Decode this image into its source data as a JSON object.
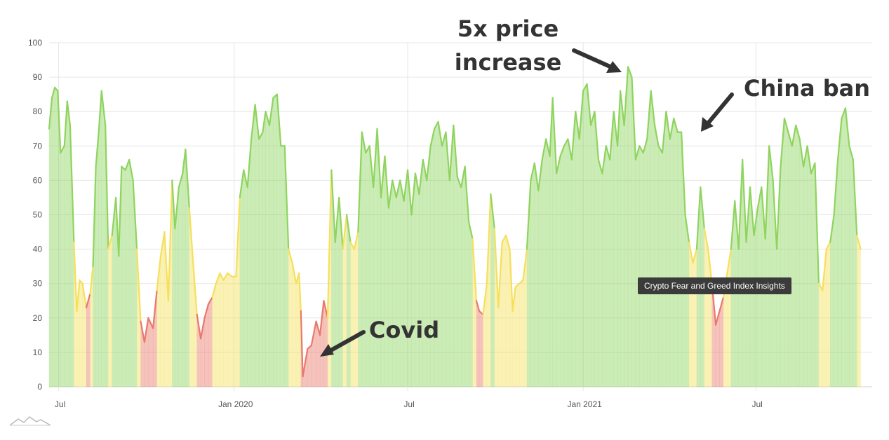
{
  "chart_data": {
    "type": "area",
    "title": "",
    "xlabel": "",
    "ylabel": "",
    "ylim": [
      0,
      100
    ],
    "y_ticks": [
      "0",
      "10",
      "20",
      "30",
      "40",
      "50",
      "60",
      "70",
      "80",
      "90",
      "100"
    ],
    "x_ticks": [
      {
        "label": "Jul",
        "date": "2019-07-01"
      },
      {
        "label": "Jan 2020",
        "date": "2020-01-01"
      },
      {
        "label": "Jul",
        "date": "2020-07-01"
      },
      {
        "label": "Jan 2021",
        "date": "2021-01-01"
      },
      {
        "label": "Jul",
        "date": "2021-07-01"
      }
    ],
    "x_range": [
      "2019-06-21",
      "2021-10-31"
    ],
    "grid": true,
    "color_bands": [
      {
        "from": 0,
        "to": 25,
        "color": "#e8796b"
      },
      {
        "from": 25,
        "to": 45,
        "color": "#f5e05c"
      },
      {
        "from": 45,
        "to": 100,
        "color": "#8fd45f"
      }
    ],
    "series": [
      {
        "points": [
          [
            "2019-06-21",
            75
          ],
          [
            "2019-06-24",
            84
          ],
          [
            "2019-06-27",
            87
          ],
          [
            "2019-06-30",
            86
          ],
          [
            "2019-07-03",
            68
          ],
          [
            "2019-07-07",
            70
          ],
          [
            "2019-07-10",
            83
          ],
          [
            "2019-07-13",
            76
          ],
          [
            "2019-07-17",
            42
          ],
          [
            "2019-07-20",
            22
          ],
          [
            "2019-07-23",
            31
          ],
          [
            "2019-07-26",
            30
          ],
          [
            "2019-07-30",
            23
          ],
          [
            "2019-08-03",
            27
          ],
          [
            "2019-08-06",
            35
          ],
          [
            "2019-08-09",
            64
          ],
          [
            "2019-08-12",
            74
          ],
          [
            "2019-08-15",
            86
          ],
          [
            "2019-08-19",
            76
          ],
          [
            "2019-08-22",
            40
          ],
          [
            "2019-08-26",
            44
          ],
          [
            "2019-08-30",
            55
          ],
          [
            "2019-09-02",
            38
          ],
          [
            "2019-09-05",
            64
          ],
          [
            "2019-09-09",
            63
          ],
          [
            "2019-09-13",
            66
          ],
          [
            "2019-09-17",
            60
          ],
          [
            "2019-09-21",
            40
          ],
          [
            "2019-09-25",
            19
          ],
          [
            "2019-09-29",
            13
          ],
          [
            "2019-10-03",
            20
          ],
          [
            "2019-10-08",
            17
          ],
          [
            "2019-10-12",
            28
          ],
          [
            "2019-10-16",
            38
          ],
          [
            "2019-10-20",
            45
          ],
          [
            "2019-10-24",
            25
          ],
          [
            "2019-10-28",
            60
          ],
          [
            "2019-10-31",
            46
          ],
          [
            "2019-11-04",
            58
          ],
          [
            "2019-11-08",
            62
          ],
          [
            "2019-11-11",
            69
          ],
          [
            "2019-11-15",
            52
          ],
          [
            "2019-11-19",
            36
          ],
          [
            "2019-11-23",
            21
          ],
          [
            "2019-11-27",
            14
          ],
          [
            "2019-12-01",
            20
          ],
          [
            "2019-12-05",
            24
          ],
          [
            "2019-12-09",
            26
          ],
          [
            "2019-12-13",
            30
          ],
          [
            "2019-12-17",
            33
          ],
          [
            "2019-12-21",
            31
          ],
          [
            "2019-12-25",
            33
          ],
          [
            "2019-12-30",
            32
          ],
          [
            "2020-01-03",
            32
          ],
          [
            "2020-01-07",
            55
          ],
          [
            "2020-01-11",
            63
          ],
          [
            "2020-01-15",
            58
          ],
          [
            "2020-01-19",
            72
          ],
          [
            "2020-01-23",
            82
          ],
          [
            "2020-01-27",
            72
          ],
          [
            "2020-01-31",
            74
          ],
          [
            "2020-02-03",
            80
          ],
          [
            "2020-02-07",
            76
          ],
          [
            "2020-02-11",
            84
          ],
          [
            "2020-02-15",
            85
          ],
          [
            "2020-02-19",
            70
          ],
          [
            "2020-02-23",
            70
          ],
          [
            "2020-02-27",
            40
          ],
          [
            "2020-03-02",
            36
          ],
          [
            "2020-03-06",
            30
          ],
          [
            "2020-03-09",
            33
          ],
          [
            "2020-03-11",
            22
          ],
          [
            "2020-03-13",
            3
          ],
          [
            "2020-03-18",
            11
          ],
          [
            "2020-03-22",
            12
          ],
          [
            "2020-03-27",
            19
          ],
          [
            "2020-03-31",
            15
          ],
          [
            "2020-04-04",
            25
          ],
          [
            "2020-04-08",
            20
          ],
          [
            "2020-04-12",
            63
          ],
          [
            "2020-04-16",
            42
          ],
          [
            "2020-04-20",
            55
          ],
          [
            "2020-04-24",
            40
          ],
          [
            "2020-04-28",
            50
          ],
          [
            "2020-05-02",
            42
          ],
          [
            "2020-05-06",
            40
          ],
          [
            "2020-05-10",
            45
          ],
          [
            "2020-05-14",
            74
          ],
          [
            "2020-05-18",
            68
          ],
          [
            "2020-05-22",
            70
          ],
          [
            "2020-05-26",
            58
          ],
          [
            "2020-05-30",
            75
          ],
          [
            "2020-06-03",
            55
          ],
          [
            "2020-06-07",
            67
          ],
          [
            "2020-06-11",
            52
          ],
          [
            "2020-06-15",
            60
          ],
          [
            "2020-06-19",
            55
          ],
          [
            "2020-06-23",
            60
          ],
          [
            "2020-06-27",
            54
          ],
          [
            "2020-07-01",
            63
          ],
          [
            "2020-07-05",
            50
          ],
          [
            "2020-07-09",
            62
          ],
          [
            "2020-07-13",
            56
          ],
          [
            "2020-07-17",
            66
          ],
          [
            "2020-07-21",
            60
          ],
          [
            "2020-07-25",
            70
          ],
          [
            "2020-07-29",
            75
          ],
          [
            "2020-08-02",
            77
          ],
          [
            "2020-08-06",
            70
          ],
          [
            "2020-08-10",
            74
          ],
          [
            "2020-08-14",
            60
          ],
          [
            "2020-08-18",
            76
          ],
          [
            "2020-08-22",
            61
          ],
          [
            "2020-08-26",
            58
          ],
          [
            "2020-08-30",
            64
          ],
          [
            "2020-09-03",
            48
          ],
          [
            "2020-09-07",
            43
          ],
          [
            "2020-09-11",
            25
          ],
          [
            "2020-09-14",
            22
          ],
          [
            "2020-09-18",
            21
          ],
          [
            "2020-09-22",
            30
          ],
          [
            "2020-09-26",
            56
          ],
          [
            "2020-09-30",
            46
          ],
          [
            "2020-10-04",
            23
          ],
          [
            "2020-10-08",
            42
          ],
          [
            "2020-10-12",
            44
          ],
          [
            "2020-10-16",
            40
          ],
          [
            "2020-10-19",
            22
          ],
          [
            "2020-10-22",
            29
          ],
          [
            "2020-10-26",
            30
          ],
          [
            "2020-10-30",
            31
          ],
          [
            "2020-11-03",
            40
          ],
          [
            "2020-11-07",
            60
          ],
          [
            "2020-11-11",
            65
          ],
          [
            "2020-11-15",
            57
          ],
          [
            "2020-11-19",
            66
          ],
          [
            "2020-11-23",
            72
          ],
          [
            "2020-11-27",
            67
          ],
          [
            "2020-11-30",
            84
          ],
          [
            "2020-12-04",
            62
          ],
          [
            "2020-12-08",
            67
          ],
          [
            "2020-12-12",
            70
          ],
          [
            "2020-12-16",
            72
          ],
          [
            "2020-12-20",
            66
          ],
          [
            "2020-12-24",
            80
          ],
          [
            "2020-12-28",
            72
          ],
          [
            "2021-01-01",
            86
          ],
          [
            "2021-01-05",
            88
          ],
          [
            "2021-01-09",
            76
          ],
          [
            "2021-01-13",
            80
          ],
          [
            "2021-01-17",
            66
          ],
          [
            "2021-01-21",
            62
          ],
          [
            "2021-01-25",
            70
          ],
          [
            "2021-01-29",
            66
          ],
          [
            "2021-02-02",
            80
          ],
          [
            "2021-02-06",
            70
          ],
          [
            "2021-02-09",
            86
          ],
          [
            "2021-02-13",
            76
          ],
          [
            "2021-02-17",
            93
          ],
          [
            "2021-02-21",
            90
          ],
          [
            "2021-02-25",
            66
          ],
          [
            "2021-03-01",
            70
          ],
          [
            "2021-03-05",
            68
          ],
          [
            "2021-03-09",
            72
          ],
          [
            "2021-03-13",
            86
          ],
          [
            "2021-03-17",
            76
          ],
          [
            "2021-03-21",
            70
          ],
          [
            "2021-03-25",
            68
          ],
          [
            "2021-03-29",
            80
          ],
          [
            "2021-04-02",
            72
          ],
          [
            "2021-04-06",
            78
          ],
          [
            "2021-04-10",
            74
          ],
          [
            "2021-04-14",
            74
          ],
          [
            "2021-04-18",
            50
          ],
          [
            "2021-04-22",
            42
          ],
          [
            "2021-04-26",
            36
          ],
          [
            "2021-04-30",
            40
          ],
          [
            "2021-05-04",
            58
          ],
          [
            "2021-05-08",
            46
          ],
          [
            "2021-05-12",
            40
          ],
          [
            "2021-05-16",
            30
          ],
          [
            "2021-05-20",
            18
          ],
          [
            "2021-05-24",
            22
          ],
          [
            "2021-05-28",
            26
          ],
          [
            "2021-06-01",
            33
          ],
          [
            "2021-06-05",
            40
          ],
          [
            "2021-06-09",
            54
          ],
          [
            "2021-06-13",
            40
          ],
          [
            "2021-06-17",
            66
          ],
          [
            "2021-06-21",
            42
          ],
          [
            "2021-06-25",
            58
          ],
          [
            "2021-06-29",
            44
          ],
          [
            "2021-07-03",
            52
          ],
          [
            "2021-07-07",
            58
          ],
          [
            "2021-07-11",
            43
          ],
          [
            "2021-07-15",
            70
          ],
          [
            "2021-07-19",
            60
          ],
          [
            "2021-07-23",
            40
          ],
          [
            "2021-07-27",
            64
          ],
          [
            "2021-07-31",
            78
          ],
          [
            "2021-08-04",
            74
          ],
          [
            "2021-08-08",
            70
          ],
          [
            "2021-08-12",
            76
          ],
          [
            "2021-08-16",
            72
          ],
          [
            "2021-08-20",
            64
          ],
          [
            "2021-08-24",
            70
          ],
          [
            "2021-08-28",
            62
          ],
          [
            "2021-09-01",
            65
          ],
          [
            "2021-09-05",
            30
          ],
          [
            "2021-09-09",
            28
          ],
          [
            "2021-09-13",
            40
          ],
          [
            "2021-09-17",
            42
          ],
          [
            "2021-09-21",
            50
          ],
          [
            "2021-09-25",
            66
          ],
          [
            "2021-09-29",
            78
          ],
          [
            "2021-10-03",
            81
          ],
          [
            "2021-10-07",
            70
          ],
          [
            "2021-10-11",
            66
          ],
          [
            "2021-10-15",
            44
          ],
          [
            "2021-10-19",
            40
          ]
        ]
      }
    ],
    "annotations": [
      {
        "lines": [
          "5x price",
          "increase"
        ]
      },
      {
        "lines": [
          "China ban"
        ]
      },
      {
        "lines": [
          "Covid"
        ]
      }
    ]
  },
  "tooltip": {
    "text": "Crypto Fear and Greed Index Insights"
  }
}
